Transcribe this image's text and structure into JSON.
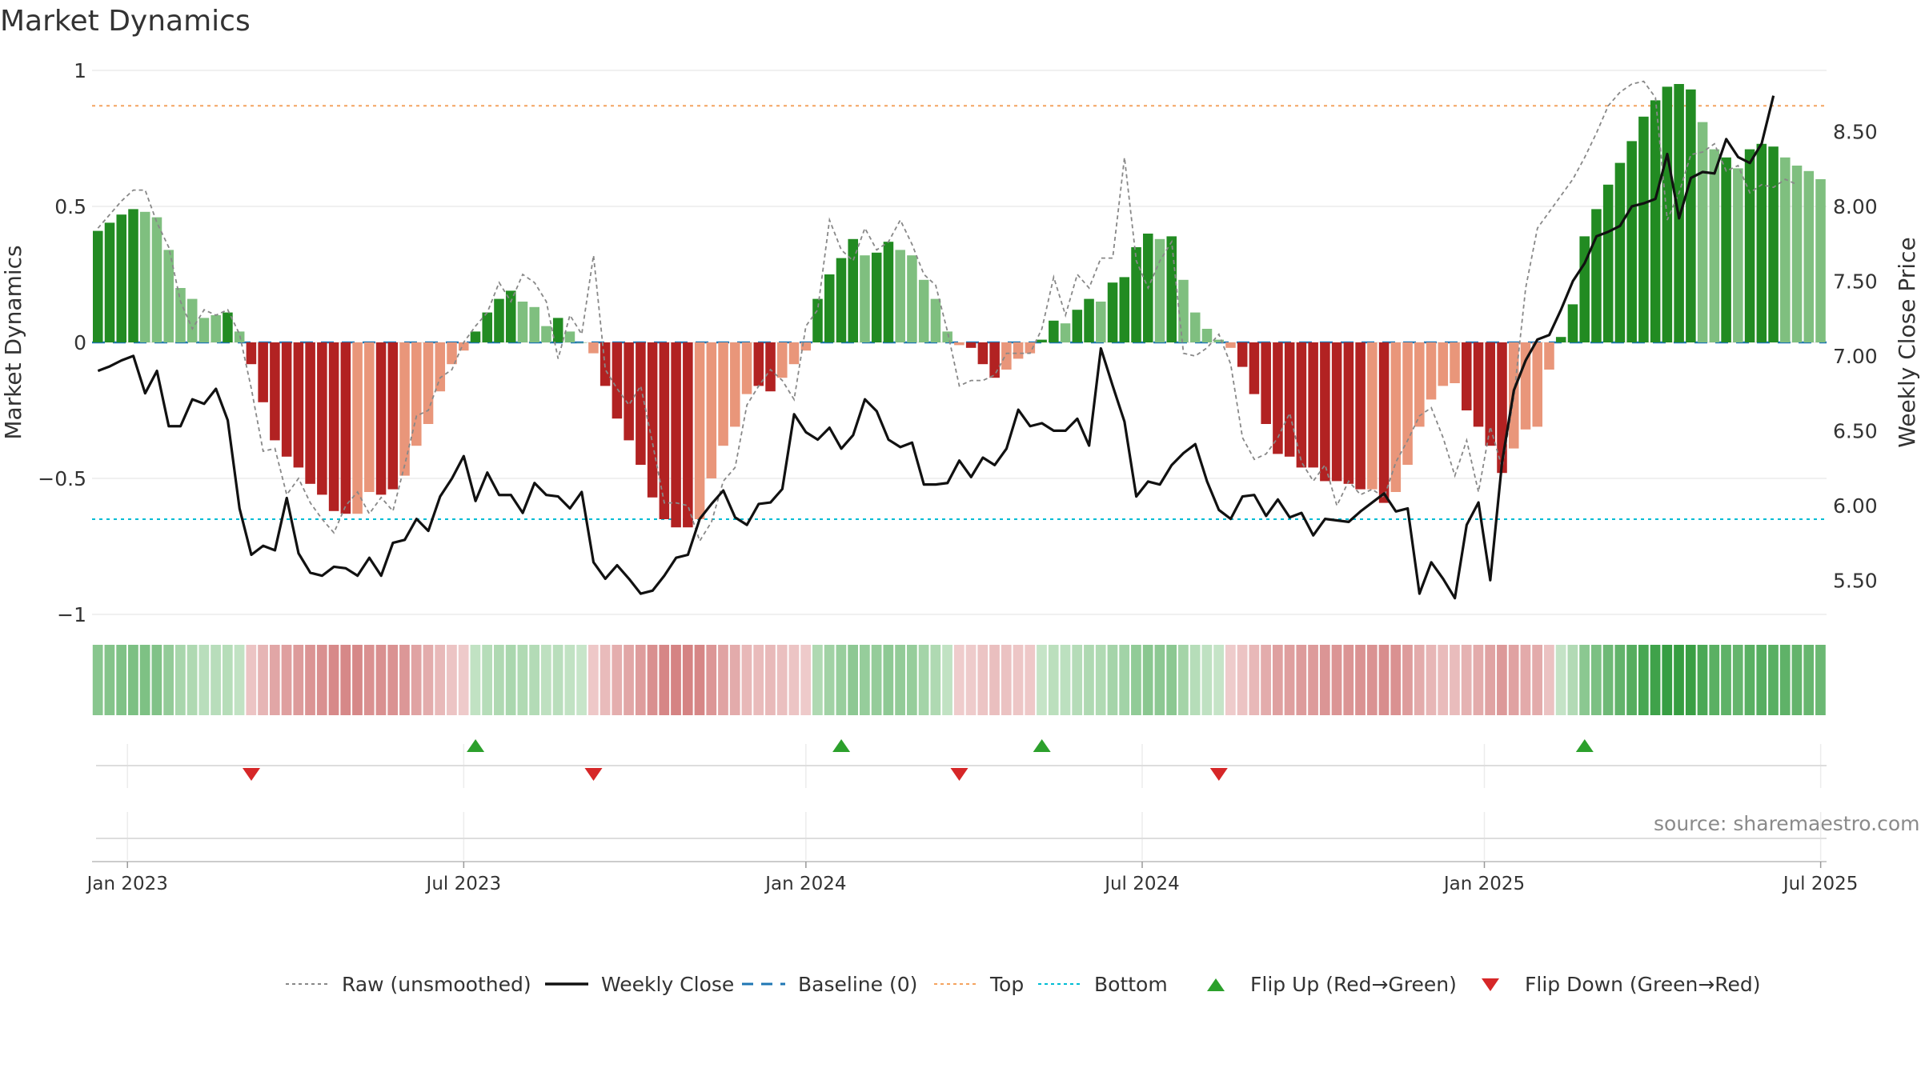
{
  "title": "Market Dynamics",
  "source": "source: sharemaestro.com",
  "colors": {
    "strong_green": "#228b22",
    "light_green": "#7fbf7f",
    "strong_red": "#b22222",
    "light_red": "#e9967a",
    "price_line": "#111111",
    "raw_line": "#888888",
    "baseline": "#1f77b4",
    "top_line": "#f4a460",
    "bottom_line": "#00bcd4",
    "flip_up": "#2ca02c",
    "flip_down": "#d62728"
  },
  "legend": [
    {
      "label": "Raw (unsmoothed)",
      "icon": "dotted-gray-line-icon"
    },
    {
      "label": "Weekly Close",
      "icon": "solid-black-line-icon"
    },
    {
      "label": "Baseline (0)",
      "icon": "dashed-blue-line-icon"
    },
    {
      "label": "Top",
      "icon": "dotted-orange-line-icon"
    },
    {
      "label": "Bottom",
      "icon": "dotted-cyan-line-icon"
    },
    {
      "label": "Flip Up (Red→Green)",
      "icon": "green-triangle-up-icon"
    },
    {
      "label": "Flip Down (Green→Red)",
      "icon": "red-triangle-down-icon"
    }
  ],
  "chart_data": {
    "type": "bar",
    "title": "Market Dynamics",
    "ylabel": "Market Dynamics",
    "y2label": "Weekly Close Price",
    "ylim": [
      -1,
      1
    ],
    "y2lim": [
      5.25,
      8.92
    ],
    "yticks": [
      1,
      0.5,
      0,
      -0.5,
      -1
    ],
    "ytick_labels": [
      "1",
      "0.5",
      "0",
      "−0.5",
      "−1"
    ],
    "y2ticks": [
      8.5,
      8.0,
      7.5,
      7.0,
      6.5,
      6.0,
      5.5
    ],
    "y2tick_labels": [
      "8.50",
      "8.00",
      "7.50",
      "7.00",
      "6.50",
      "6.00",
      "5.50"
    ],
    "xtick_labels": [
      "Jan 2023",
      "Jul 2023",
      "Jan 2024",
      "Jul 2024",
      "Jan 2025",
      "Jul 2025"
    ],
    "xtick_week_index": [
      2.5,
      31,
      60,
      88.5,
      117.5,
      146
    ],
    "top_level": 0.87,
    "bottom_level": -0.65,
    "baseline": 0,
    "grid": true,
    "legend_position": "bottom",
    "series": [
      {
        "name": "Market Dynamics",
        "values": [
          0.41,
          0.44,
          0.47,
          0.49,
          0.48,
          0.46,
          0.34,
          0.2,
          0.16,
          0.09,
          0.1,
          0.11,
          0.04,
          -0.08,
          -0.22,
          -0.36,
          -0.42,
          -0.46,
          -0.52,
          -0.56,
          -0.62,
          -0.63,
          -0.63,
          -0.55,
          -0.56,
          -0.54,
          -0.49,
          -0.38,
          -0.3,
          -0.18,
          -0.08,
          -0.03,
          0.04,
          0.11,
          0.16,
          0.19,
          0.15,
          0.13,
          0.06,
          0.09,
          0.04,
          0,
          -0.04,
          -0.16,
          -0.28,
          -0.36,
          -0.45,
          -0.57,
          -0.65,
          -0.68,
          -0.68,
          -0.65,
          -0.5,
          -0.38,
          -0.31,
          -0.19,
          -0.16,
          -0.18,
          -0.13,
          -0.08,
          -0.03,
          0.16,
          0.25,
          0.31,
          0.38,
          0.32,
          0.33,
          0.37,
          0.34,
          0.32,
          0.23,
          0.16,
          0.04,
          -0.01,
          -0.02,
          -0.08,
          -0.13,
          -0.1,
          -0.06,
          -0.04,
          0.01,
          0.08,
          0.07,
          0.12,
          0.16,
          0.15,
          0.22,
          0.24,
          0.35,
          0.4,
          0.38,
          0.39,
          0.23,
          0.11,
          0.05,
          0.01,
          -0.02,
          -0.09,
          -0.19,
          -0.3,
          -0.41,
          -0.42,
          -0.46,
          -0.46,
          -0.51,
          -0.51,
          -0.52,
          -0.54,
          -0.54,
          -0.59,
          -0.55,
          -0.45,
          -0.31,
          -0.21,
          -0.16,
          -0.15,
          -0.25,
          -0.31,
          -0.38,
          -0.48,
          -0.39,
          -0.32,
          -0.31,
          -0.1,
          0.02,
          0.14,
          0.39,
          0.49,
          0.58,
          0.66,
          0.74,
          0.83,
          0.89,
          0.94,
          0.95,
          0.93,
          0.81,
          0.71,
          0.68,
          0.64,
          0.71,
          0.73,
          0.72,
          0.68,
          0.65,
          0.63,
          0.6
        ],
        "strong_flags": [
          1,
          1,
          1,
          1,
          0,
          0,
          0,
          0,
          0,
          0,
          0,
          1,
          0,
          1,
          1,
          1,
          1,
          1,
          1,
          1,
          1,
          1,
          0,
          0,
          1,
          1,
          0,
          0,
          0,
          0,
          0,
          0,
          1,
          1,
          1,
          1,
          0,
          0,
          0,
          1,
          0,
          0,
          0,
          1,
          1,
          1,
          1,
          1,
          1,
          1,
          1,
          0,
          0,
          0,
          0,
          0,
          1,
          1,
          0,
          0,
          0,
          1,
          1,
          1,
          1,
          0,
          1,
          1,
          0,
          0,
          0,
          0,
          0,
          0,
          1,
          1,
          1,
          0,
          0,
          0,
          1,
          1,
          0,
          1,
          1,
          0,
          1,
          1,
          1,
          1,
          0,
          1,
          0,
          0,
          0,
          0,
          0,
          1,
          1,
          1,
          1,
          1,
          1,
          1,
          1,
          1,
          1,
          1,
          0,
          1,
          0,
          0,
          0,
          0,
          0,
          0,
          1,
          1,
          1,
          1,
          0,
          0,
          0,
          0,
          1,
          1,
          1,
          1,
          1,
          1,
          1,
          1,
          1,
          1,
          1,
          1,
          0,
          0,
          1,
          0,
          1,
          1,
          1,
          0,
          0,
          0,
          0,
          0
        ]
      },
      {
        "name": "Raw (unsmoothed)",
        "values": [
          0.42,
          0.47,
          0.52,
          0.56,
          0.56,
          0.44,
          0.35,
          0.15,
          0.05,
          0.12,
          0.1,
          0.12,
          0.03,
          -0.17,
          -0.4,
          -0.39,
          -0.56,
          -0.5,
          -0.59,
          -0.65,
          -0.7,
          -0.6,
          -0.55,
          -0.63,
          -0.57,
          -0.62,
          -0.45,
          -0.27,
          -0.25,
          -0.13,
          -0.1,
          0,
          0.06,
          0.11,
          0.22,
          0.15,
          0.25,
          0.22,
          0.15,
          -0.06,
          0.1,
          0.03,
          0.32,
          -0.1,
          -0.17,
          -0.23,
          -0.16,
          -0.37,
          -0.59,
          -0.59,
          -0.6,
          -0.73,
          -0.66,
          -0.51,
          -0.46,
          -0.23,
          -0.16,
          -0.1,
          -0.14,
          -0.21,
          0.06,
          0.12,
          0.45,
          0.34,
          0.3,
          0.42,
          0.34,
          0.37,
          0.45,
          0.36,
          0.25,
          0.21,
          0.04,
          -0.16,
          -0.14,
          -0.14,
          -0.12,
          -0.04,
          -0.04,
          -0.04,
          0.05,
          0.24,
          0.1,
          0.25,
          0.2,
          0.31,
          0.31,
          0.68,
          0.3,
          0.2,
          0.3,
          0.37,
          -0.04,
          -0.05,
          -0.02,
          0.03,
          -0.08,
          -0.35,
          -0.43,
          -0.41,
          -0.35,
          -0.26,
          -0.44,
          -0.51,
          -0.45,
          -0.6,
          -0.51,
          -0.56,
          -0.54,
          -0.57,
          -0.44,
          -0.36,
          -0.27,
          -0.24,
          -0.35,
          -0.49,
          -0.36,
          -0.55,
          -0.31,
          -0.46,
          -0.2,
          0.2,
          0.42,
          0.48,
          0.54,
          0.6,
          0.68,
          0.77,
          0.87,
          0.92,
          0.95,
          0.96,
          0.9,
          0.45,
          0.55,
          0.69,
          0.7,
          0.73,
          0.63,
          0.65,
          0.55,
          0.58,
          0.57,
          0.6,
          0.58
        ]
      },
      {
        "name": "Weekly Close",
        "axis": "right",
        "values": [
          6.9,
          6.93,
          6.97,
          7.0,
          6.75,
          6.9,
          6.53,
          6.53,
          6.71,
          6.68,
          6.78,
          6.57,
          5.98,
          5.67,
          5.73,
          5.7,
          6.05,
          5.68,
          5.55,
          5.53,
          5.59,
          5.58,
          5.53,
          5.65,
          5.53,
          5.75,
          5.77,
          5.91,
          5.83,
          6.06,
          6.18,
          6.33,
          6.03,
          6.22,
          6.07,
          6.07,
          5.95,
          6.15,
          6.07,
          6.06,
          5.98,
          6.09,
          5.62,
          5.51,
          5.6,
          5.51,
          5.41,
          5.43,
          5.53,
          5.65,
          5.67,
          5.91,
          6.01,
          6.1,
          5.92,
          5.87,
          6.01,
          6.02,
          6.11,
          6.61,
          6.49,
          6.44,
          6.52,
          6.38,
          6.47,
          6.71,
          6.63,
          6.44,
          6.39,
          6.42,
          6.14,
          6.14,
          6.15,
          6.3,
          6.19,
          6.32,
          6.27,
          6.38,
          6.64,
          6.53,
          6.55,
          6.5,
          6.5,
          6.58,
          6.4,
          7.05,
          6.8,
          6.56,
          6.06,
          6.16,
          6.14,
          6.27,
          6.35,
          6.41,
          6.16,
          5.97,
          5.91,
          6.06,
          6.07,
          5.93,
          6.04,
          5.92,
          5.95,
          5.8,
          5.91,
          5.9,
          5.89,
          5.96,
          6.02,
          6.08,
          5.96,
          5.98,
          5.41,
          5.62,
          5.51,
          5.38,
          5.87,
          6.02,
          5.5,
          6.29,
          6.77,
          6.97,
          7.11,
          7.14,
          7.31,
          7.5,
          7.62,
          7.8,
          7.83,
          7.87,
          8.0,
          8.02,
          8.05,
          8.35,
          7.92,
          8.19,
          8.23,
          8.22,
          8.45,
          8.33,
          8.29,
          8.42,
          8.74
        ]
      }
    ],
    "flip_up_week_index": [
      32,
      63,
      80,
      126
    ],
    "flip_down_week_index": [
      13,
      42,
      73,
      95
    ]
  }
}
